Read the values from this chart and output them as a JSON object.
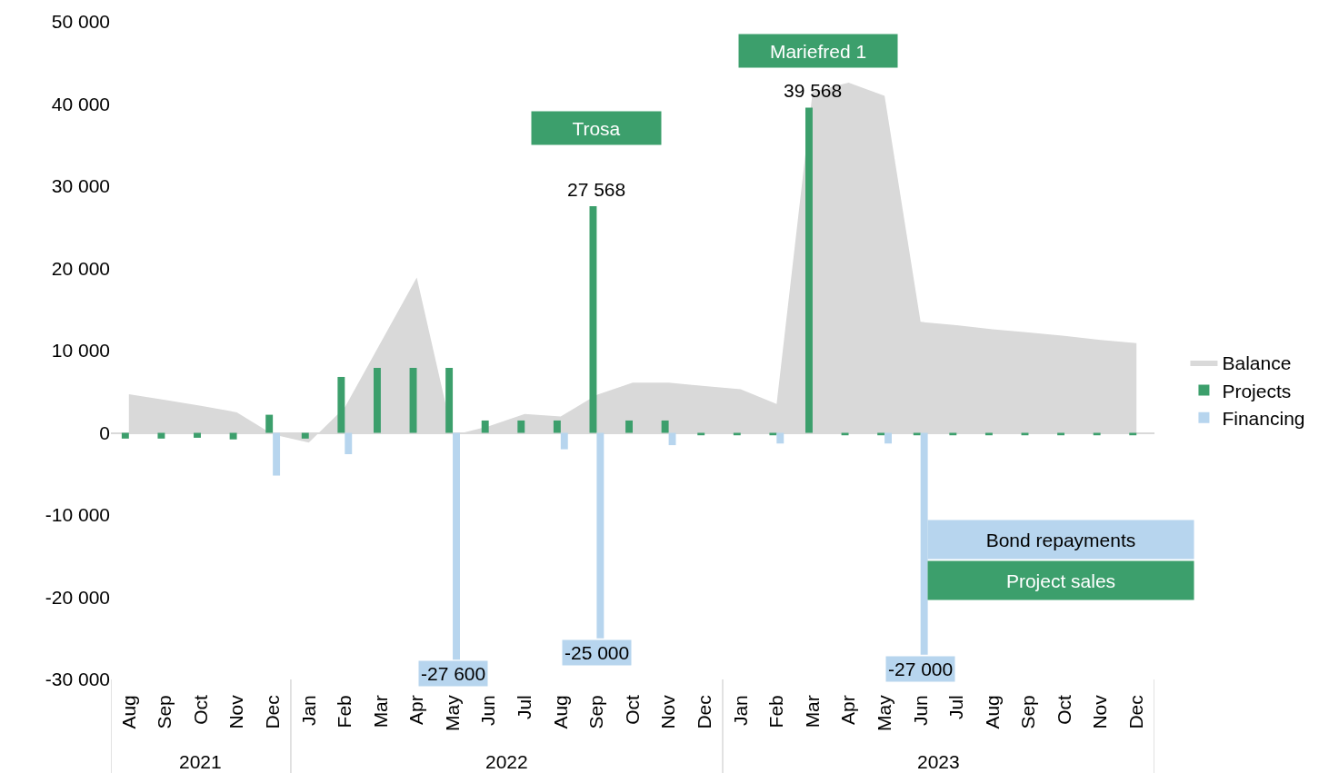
{
  "chart_data": {
    "type": "bar",
    "categories": [
      "Aug",
      "Sep",
      "Oct",
      "Nov",
      "Dec",
      "Jan",
      "Feb",
      "Mar",
      "Apr",
      "May",
      "Jun",
      "Jul",
      "Aug",
      "Sep",
      "Oct",
      "Nov",
      "Dec",
      "Jan",
      "Feb",
      "Mar",
      "Apr",
      "May",
      "Jun",
      "Jul",
      "Aug",
      "Sep",
      "Oct",
      "Nov",
      "Dec"
    ],
    "series": [
      {
        "name": "Balance",
        "type": "area",
        "color": "#d9d9d9",
        "values": [
          4700,
          4000,
          3300,
          2500,
          -200,
          -1200,
          3100,
          11000,
          18900,
          -300,
          800,
          2300,
          2000,
          4600,
          6100,
          6100,
          5700,
          5300,
          3500,
          41500,
          42600,
          41000,
          13500,
          13100,
          12600,
          12200,
          11800,
          11300,
          10900
        ]
      },
      {
        "name": "Projects",
        "color": "#3c9f6c",
        "values": [
          -700,
          -700,
          -600,
          -800,
          2200,
          -700,
          6800,
          7900,
          7900,
          7900,
          1500,
          1500,
          1500,
          27568,
          1500,
          1500,
          -300,
          -300,
          -300,
          39568,
          -300,
          -300,
          -300,
          -300,
          -300,
          -300,
          -300,
          -300,
          -300
        ],
        "value_labels": [
          null,
          null,
          null,
          null,
          null,
          null,
          null,
          null,
          null,
          null,
          null,
          null,
          null,
          "27 568",
          null,
          null,
          null,
          null,
          null,
          "39 568",
          null,
          null,
          null,
          null,
          null,
          null,
          null,
          null,
          null
        ]
      },
      {
        "name": "Financing",
        "color": "#b7d5ee",
        "values": [
          0,
          0,
          0,
          0,
          -5200,
          0,
          -2600,
          0,
          0,
          -27600,
          0,
          0,
          -2000,
          -25000,
          0,
          -1500,
          0,
          0,
          -1300,
          0,
          0,
          -1300,
          -27000,
          0,
          0,
          0,
          0,
          0,
          0
        ],
        "value_labels": [
          null,
          null,
          null,
          null,
          null,
          null,
          null,
          null,
          null,
          "-27 600",
          null,
          null,
          null,
          "-25 000",
          null,
          null,
          null,
          null,
          null,
          null,
          null,
          null,
          "-27 000",
          null,
          null,
          null,
          null,
          null,
          null
        ]
      }
    ],
    "ylim": [
      -30000,
      50000
    ],
    "yticks": [
      {
        "value": -30000,
        "label": "-30 000"
      },
      {
        "value": -20000,
        "label": "-20 000"
      },
      {
        "value": -10000,
        "label": "-10 000"
      },
      0,
      {
        "value": 10000,
        "label": "10 000"
      },
      {
        "value": 20000,
        "label": "20 000"
      },
      {
        "value": 30000,
        "label": "30 000"
      },
      {
        "value": 40000,
        "label": "40 000"
      },
      {
        "value": 50000,
        "label": "50 000"
      }
    ],
    "annotations": [
      "2021",
      "2022",
      "2023",
      "Trosa",
      "Mariefred 1",
      "Bond repayments",
      "Project sales"
    ],
    "legend": "right"
  }
}
